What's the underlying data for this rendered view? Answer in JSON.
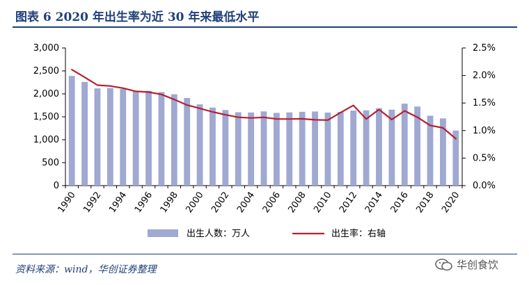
{
  "header": {
    "title": "图表 6   2020 年出生率为近 30 年来最低水平"
  },
  "footer": {
    "source": "资料来源：wind，华创证券整理"
  },
  "watermark": {
    "text": "华创食饮"
  },
  "chart_data": {
    "type": "bar",
    "x": [
      1990,
      1991,
      1992,
      1993,
      1994,
      1995,
      1996,
      1997,
      1998,
      1999,
      2000,
      2001,
      2002,
      2003,
      2004,
      2005,
      2006,
      2007,
      2008,
      2009,
      2010,
      2011,
      2012,
      2013,
      2014,
      2015,
      2016,
      2017,
      2018,
      2019,
      2020
    ],
    "x_tick_labels": [
      "1990",
      "1992",
      "1994",
      "1996",
      "1998",
      "2000",
      "2002",
      "2004",
      "2006",
      "2008",
      "2010",
      "2012",
      "2014",
      "2016",
      "2018",
      "2020"
    ],
    "y_left_ticks": [
      "0",
      "500",
      "1,000",
      "1,500",
      "2,000",
      "2,500",
      "3,000"
    ],
    "y_right_ticks": [
      "0.0%",
      "0.5%",
      "1.0%",
      "1.5%",
      "2.0%",
      "2.5%"
    ],
    "ylim_left": [
      0,
      3000
    ],
    "ylim_right": [
      0,
      2.5
    ],
    "grid": false,
    "legend_position": "bottom",
    "series": [
      {
        "name": "出生人数：万人",
        "type": "bar",
        "axis": "left",
        "color": "#9fa9d2",
        "values": [
          2391,
          2258,
          2119,
          2126,
          2104,
          2063,
          2067,
          2038,
          1991,
          1909,
          1771,
          1702,
          1647,
          1599,
          1593,
          1617,
          1585,
          1595,
          1608,
          1615,
          1592,
          1604,
          1635,
          1640,
          1687,
          1655,
          1786,
          1723,
          1523,
          1465,
          1200
        ]
      },
      {
        "name": "出生率：右轴",
        "type": "line",
        "axis": "right",
        "color": "#b5202e",
        "values": [
          2.106,
          1.968,
          1.824,
          1.809,
          1.77,
          1.712,
          1.698,
          1.657,
          1.564,
          1.464,
          1.403,
          1.338,
          1.286,
          1.241,
          1.229,
          1.24,
          1.209,
          1.21,
          1.214,
          1.195,
          1.19,
          1.327,
          1.457,
          1.208,
          1.383,
          1.199,
          1.357,
          1.243,
          1.094,
          1.048,
          0.852
        ]
      }
    ]
  }
}
